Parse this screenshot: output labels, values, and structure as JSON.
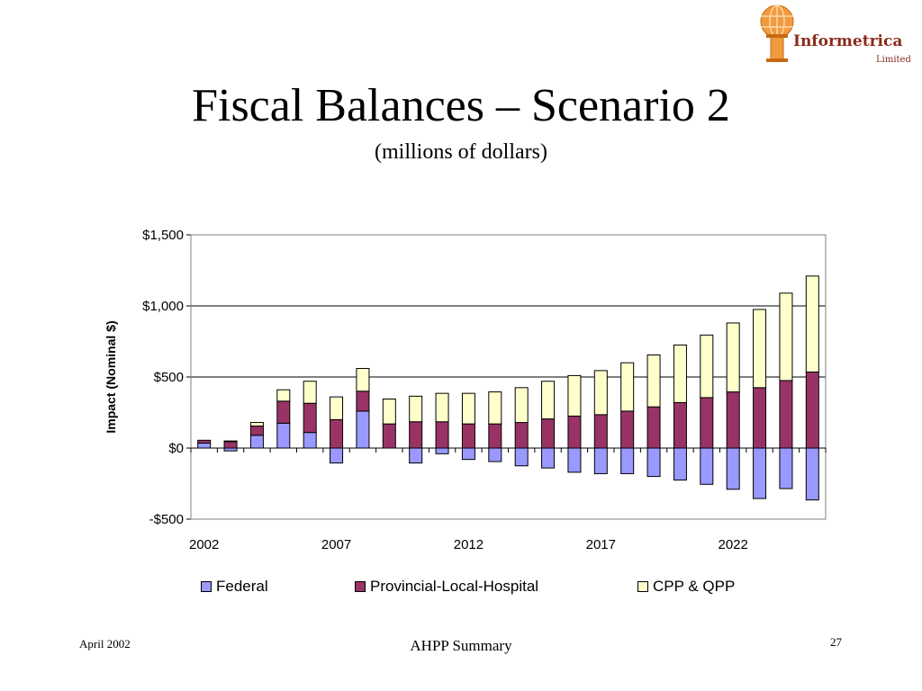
{
  "logo": {
    "name": "Informetrica",
    "sub": "Limited",
    "color": "#f19a3e"
  },
  "slide": {
    "title": "Fiscal Balances – Scenario 2",
    "subtitle": "(millions of dollars)"
  },
  "footer": {
    "date": "April 2002",
    "center": "AHPP Summary",
    "page": "27"
  },
  "chart_data": {
    "type": "bar",
    "stacked": true,
    "ylabel": "Impact (Nominal $)",
    "ylim": [
      -500,
      1500
    ],
    "yticks": [
      -500,
      0,
      500,
      1000,
      1500
    ],
    "ytick_labels": [
      "-$500",
      "$0",
      "$500",
      "$1,000",
      "$1,500"
    ],
    "grid": true,
    "legend_position": "bottom",
    "categories": [
      2002,
      2003,
      2004,
      2005,
      2006,
      2007,
      2008,
      2009,
      2010,
      2011,
      2012,
      2013,
      2014,
      2015,
      2016,
      2017,
      2018,
      2019,
      2020,
      2021,
      2022,
      2023,
      2024,
      2025
    ],
    "xtick_labels": [
      "2002",
      "2007",
      "2012",
      "2017",
      "2022"
    ],
    "series": [
      {
        "name": "Federal",
        "color": "#9999ff",
        "values": [
          35,
          -20,
          90,
          175,
          110,
          -105,
          260,
          0,
          -105,
          -40,
          -80,
          -95,
          -125,
          -140,
          -170,
          -180,
          -180,
          -200,
          -225,
          -255,
          -290,
          -355,
          -285,
          -365
        ]
      },
      {
        "name": "Provincial-Local-Hospital",
        "color": "#993366",
        "values": [
          20,
          45,
          65,
          155,
          205,
          200,
          140,
          170,
          185,
          185,
          170,
          170,
          180,
          205,
          225,
          235,
          260,
          290,
          320,
          355,
          395,
          425,
          475,
          535
        ]
      },
      {
        "name": "CPP & QPP",
        "color": "#ffffcc",
        "values": [
          0,
          5,
          25,
          80,
          155,
          160,
          160,
          175,
          180,
          200,
          215,
          225,
          245,
          265,
          285,
          310,
          340,
          365,
          405,
          440,
          485,
          550,
          615,
          675
        ]
      }
    ]
  }
}
